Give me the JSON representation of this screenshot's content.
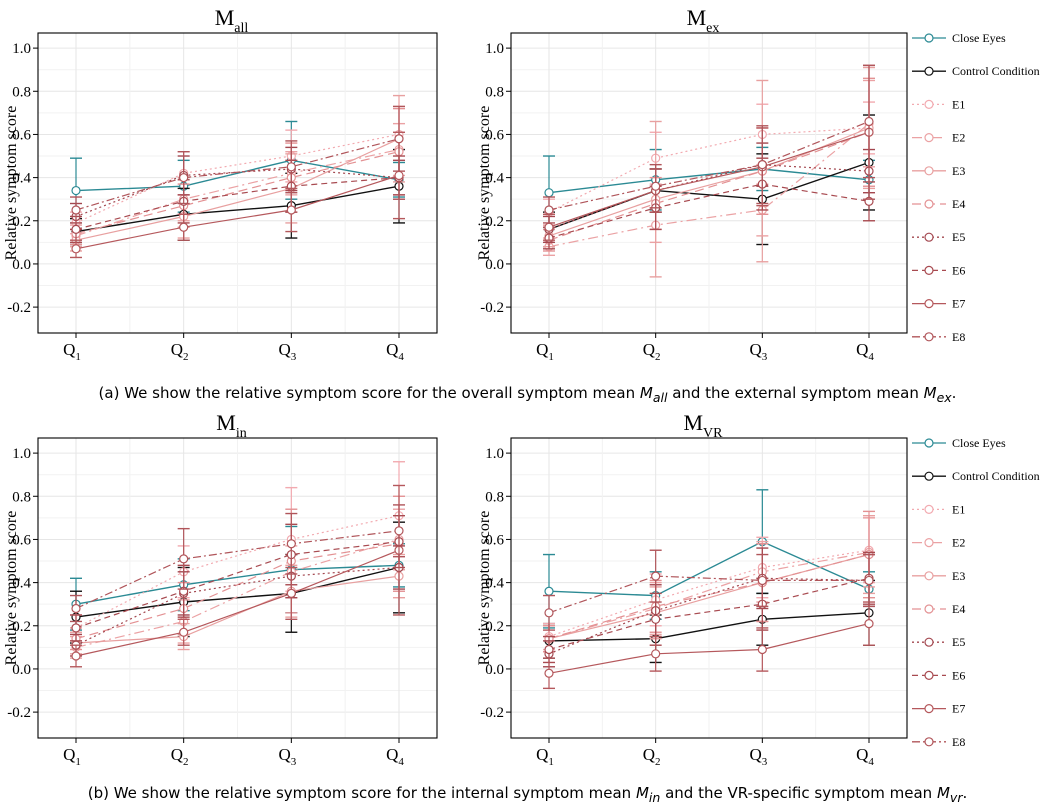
{
  "legend": [
    "Close Eyes",
    "Control Condition",
    "E1",
    "E2",
    "E3",
    "E4",
    "E5",
    "E6",
    "E7",
    "E8"
  ],
  "series_styles": [
    {
      "color": "#2b8a94",
      "dash": ""
    },
    {
      "color": "#111111",
      "dash": ""
    },
    {
      "color": "#f2aab0",
      "dash": "2,3"
    },
    {
      "color": "#eba2a4",
      "dash": "10,4,2,4"
    },
    {
      "color": "#e8a0a0",
      "dash": ""
    },
    {
      "color": "#e39193",
      "dash": "9,5"
    },
    {
      "color": "#a3474f",
      "dash": "2,3"
    },
    {
      "color": "#a84a50",
      "dash": "6,4"
    },
    {
      "color": "#b5585c",
      "dash": ""
    },
    {
      "color": "#b0555a",
      "dash": "8,3,2,3"
    }
  ],
  "captions": {
    "a": {
      "pre": "(a) We show the relative symptom score for the overall symptom mean ",
      "m1": "M",
      "s1": "all",
      "mid": " and the external symptom mean ",
      "m2": "M",
      "s2": "ex",
      "post": "."
    },
    "b": {
      "pre": "(b) We show the relative symptom score for the internal symptom mean ",
      "m1": "M",
      "s1": "in",
      "mid": " and the VR-specific symptom mean ",
      "m2": "M",
      "s2": "vr",
      "post": "."
    }
  },
  "chart_data": [
    {
      "type": "line",
      "title": "M",
      "title_sub": "all",
      "ylabel": "Relative symptom score",
      "categories": [
        "Q",
        "Q",
        "Q",
        "Q"
      ],
      "category_subs": [
        "1",
        "2",
        "3",
        "4"
      ],
      "ylim": [
        -0.32,
        1.07
      ],
      "yticks": [
        "-0.2",
        "0.0",
        "0.2",
        "0.4",
        "0.6",
        "0.8",
        "1.0"
      ],
      "grid": true,
      "series": [
        {
          "name": "Close Eyes",
          "values": [
            0.34,
            0.36,
            0.48,
            0.39
          ],
          "err": [
            0.15,
            0.12,
            0.18,
            0.08
          ]
        },
        {
          "name": "Control Condition",
          "values": [
            0.15,
            0.23,
            0.27,
            0.36
          ],
          "err": [
            0.06,
            0.12,
            0.15,
            0.17
          ]
        },
        {
          "name": "E1",
          "values": [
            0.19,
            0.42,
            0.5,
            0.6
          ],
          "err": [
            0.05,
            0.1,
            0.12,
            0.12
          ]
        },
        {
          "name": "E2",
          "values": [
            0.13,
            0.3,
            0.42,
            0.53
          ],
          "err": [
            0.05,
            0.1,
            0.1,
            0.12
          ]
        },
        {
          "name": "E3",
          "values": [
            0.11,
            0.22,
            0.35,
            0.58
          ],
          "err": [
            0.05,
            0.1,
            0.16,
            0.2
          ]
        },
        {
          "name": "E4",
          "values": [
            0.14,
            0.27,
            0.4,
            0.52
          ],
          "err": [
            0.05,
            0.1,
            0.16,
            0.2
          ]
        },
        {
          "name": "E5",
          "values": [
            0.22,
            0.41,
            0.44,
            0.4
          ],
          "err": [
            0.06,
            0.09,
            0.1,
            0.08
          ]
        },
        {
          "name": "E6",
          "values": [
            0.16,
            0.29,
            0.36,
            0.4
          ],
          "err": [
            0.06,
            0.1,
            0.12,
            0.1
          ]
        },
        {
          "name": "E7",
          "values": [
            0.07,
            0.17,
            0.25,
            0.41
          ],
          "err": [
            0.04,
            0.06,
            0.1,
            0.2
          ]
        },
        {
          "name": "E8",
          "values": [
            0.25,
            0.4,
            0.45,
            0.58
          ],
          "err": [
            0.06,
            0.12,
            0.12,
            0.15
          ]
        }
      ]
    },
    {
      "type": "line",
      "title": "M",
      "title_sub": "ex",
      "ylabel": "Relative symptom score",
      "categories": [
        "Q",
        "Q",
        "Q",
        "Q"
      ],
      "category_subs": [
        "1",
        "2",
        "3",
        "4"
      ],
      "ylim": [
        -0.32,
        1.07
      ],
      "yticks": [
        "-0.2",
        "0.0",
        "0.2",
        "0.4",
        "0.6",
        "0.8",
        "1.0"
      ],
      "grid": true,
      "series": [
        {
          "name": "Close Eyes",
          "values": [
            0.33,
            0.39,
            0.44,
            0.39
          ],
          "err": [
            0.17,
            0.14,
            0.1,
            0.09
          ]
        },
        {
          "name": "Control Condition",
          "values": [
            0.16,
            0.34,
            0.3,
            0.47
          ],
          "err": [
            0.08,
            0.1,
            0.21,
            0.22
          ]
        },
        {
          "name": "E1",
          "values": [
            0.24,
            0.49,
            0.6,
            0.63
          ],
          "err": [
            0.06,
            0.12,
            0.14,
            0.12
          ]
        },
        {
          "name": "E2",
          "values": [
            0.08,
            0.18,
            0.25,
            0.65
          ],
          "err": [
            0.04,
            0.08,
            0.12,
            0.2
          ]
        },
        {
          "name": "E3",
          "values": [
            0.13,
            0.3,
            0.43,
            0.63
          ],
          "err": [
            0.05,
            0.36,
            0.42,
            0.28
          ]
        },
        {
          "name": "E4",
          "values": [
            0.11,
            0.28,
            0.43,
            0.61
          ],
          "err": [
            0.05,
            0.12,
            0.2,
            0.25
          ]
        },
        {
          "name": "E5",
          "values": [
            0.16,
            0.34,
            0.46,
            0.43
          ],
          "err": [
            0.06,
            0.1,
            0.1,
            0.1
          ]
        },
        {
          "name": "E6",
          "values": [
            0.12,
            0.26,
            0.37,
            0.29
          ],
          "err": [
            0.05,
            0.1,
            0.12,
            0.09
          ]
        },
        {
          "name": "E7",
          "values": [
            0.17,
            0.34,
            0.45,
            0.61
          ],
          "err": [
            0.06,
            0.1,
            0.18,
            0.31
          ]
        },
        {
          "name": "E8",
          "values": [
            0.25,
            0.36,
            0.46,
            0.66
          ],
          "err": [
            0.06,
            0.1,
            0.18,
            0.26
          ]
        }
      ]
    },
    {
      "type": "line",
      "title": "M",
      "title_sub": "in",
      "ylabel": "Relative symptom score",
      "categories": [
        "Q",
        "Q",
        "Q",
        "Q"
      ],
      "category_subs": [
        "1",
        "2",
        "3",
        "4"
      ],
      "ylim": [
        -0.32,
        1.07
      ],
      "yticks": [
        "-0.2",
        "0.0",
        "0.2",
        "0.4",
        "0.6",
        "0.8",
        "1.0"
      ],
      "grid": true,
      "series": [
        {
          "name": "Close Eyes",
          "values": [
            0.3,
            0.39,
            0.46,
            0.48
          ],
          "err": [
            0.12,
            0.12,
            0.2,
            0.1
          ]
        },
        {
          "name": "Control Condition",
          "values": [
            0.24,
            0.31,
            0.35,
            0.47
          ],
          "err": [
            0.12,
            0.16,
            0.18,
            0.21
          ]
        },
        {
          "name": "E1",
          "values": [
            0.19,
            0.45,
            0.6,
            0.71
          ],
          "err": [
            0.06,
            0.12,
            0.24,
            0.25
          ]
        },
        {
          "name": "E2",
          "values": [
            0.1,
            0.22,
            0.45,
            0.6
          ],
          "err": [
            0.05,
            0.1,
            0.12,
            0.14
          ]
        },
        {
          "name": "E3",
          "values": [
            0.12,
            0.15,
            0.36,
            0.43
          ],
          "err": [
            0.05,
            0.06,
            0.12,
            0.1
          ]
        },
        {
          "name": "E4",
          "values": [
            0.14,
            0.28,
            0.5,
            0.58
          ],
          "err": [
            0.05,
            0.12,
            0.24,
            0.22
          ]
        },
        {
          "name": "E5",
          "values": [
            0.11,
            0.35,
            0.43,
            0.47
          ],
          "err": [
            0.05,
            0.1,
            0.1,
            0.1
          ]
        },
        {
          "name": "E6",
          "values": [
            0.19,
            0.36,
            0.53,
            0.59
          ],
          "err": [
            0.06,
            0.12,
            0.14,
            0.12
          ]
        },
        {
          "name": "E7",
          "values": [
            0.06,
            0.17,
            0.35,
            0.55
          ],
          "err": [
            0.05,
            0.06,
            0.12,
            0.3
          ]
        },
        {
          "name": "E8",
          "values": [
            0.28,
            0.51,
            0.58,
            0.64
          ],
          "err": [
            0.06,
            0.14,
            0.14,
            0.12
          ]
        }
      ]
    },
    {
      "type": "line",
      "title": "M",
      "title_sub": "VR",
      "ylabel": "Relative symptom score",
      "categories": [
        "Q",
        "Q",
        "Q",
        "Q"
      ],
      "category_subs": [
        "1",
        "2",
        "3",
        "4"
      ],
      "ylim": [
        -0.32,
        1.07
      ],
      "yticks": [
        "-0.2",
        "0.0",
        "0.2",
        "0.4",
        "0.6",
        "0.8",
        "1.0"
      ],
      "grid": true,
      "series": [
        {
          "name": "Close Eyes",
          "values": [
            0.36,
            0.34,
            0.59,
            0.37
          ],
          "err": [
            0.17,
            0.11,
            0.24,
            0.08
          ]
        },
        {
          "name": "Control Condition",
          "values": [
            0.13,
            0.14,
            0.23,
            0.26
          ],
          "err": [
            0.08,
            0.11,
            0.12,
            0.15
          ]
        },
        {
          "name": "E1",
          "values": [
            0.15,
            0.32,
            0.47,
            0.55
          ],
          "err": [
            0.06,
            0.12,
            0.14,
            0.15
          ]
        },
        {
          "name": "E2",
          "values": [
            0.14,
            0.28,
            0.45,
            0.54
          ],
          "err": [
            0.06,
            0.12,
            0.14,
            0.16
          ]
        },
        {
          "name": "E3",
          "values": [
            0.14,
            0.26,
            0.4,
            0.53
          ],
          "err": [
            0.06,
            0.12,
            0.18,
            0.18
          ]
        },
        {
          "name": "E4",
          "values": [
            0.14,
            0.29,
            0.4,
            0.53
          ],
          "err": [
            0.06,
            0.12,
            0.18,
            0.2
          ]
        },
        {
          "name": "E5",
          "values": [
            0.07,
            0.27,
            0.42,
            0.41
          ],
          "err": [
            0.06,
            0.12,
            0.14,
            0.12
          ]
        },
        {
          "name": "E6",
          "values": [
            0.09,
            0.23,
            0.3,
            0.42
          ],
          "err": [
            0.06,
            0.12,
            0.12,
            0.12
          ]
        },
        {
          "name": "E7",
          "values": [
            -0.02,
            0.07,
            0.09,
            0.21
          ],
          "err": [
            0.07,
            0.08,
            0.1,
            0.1
          ]
        },
        {
          "name": "E8",
          "values": [
            0.26,
            0.43,
            0.41,
            0.41
          ],
          "err": [
            0.08,
            0.12,
            0.12,
            0.12
          ]
        }
      ]
    }
  ]
}
